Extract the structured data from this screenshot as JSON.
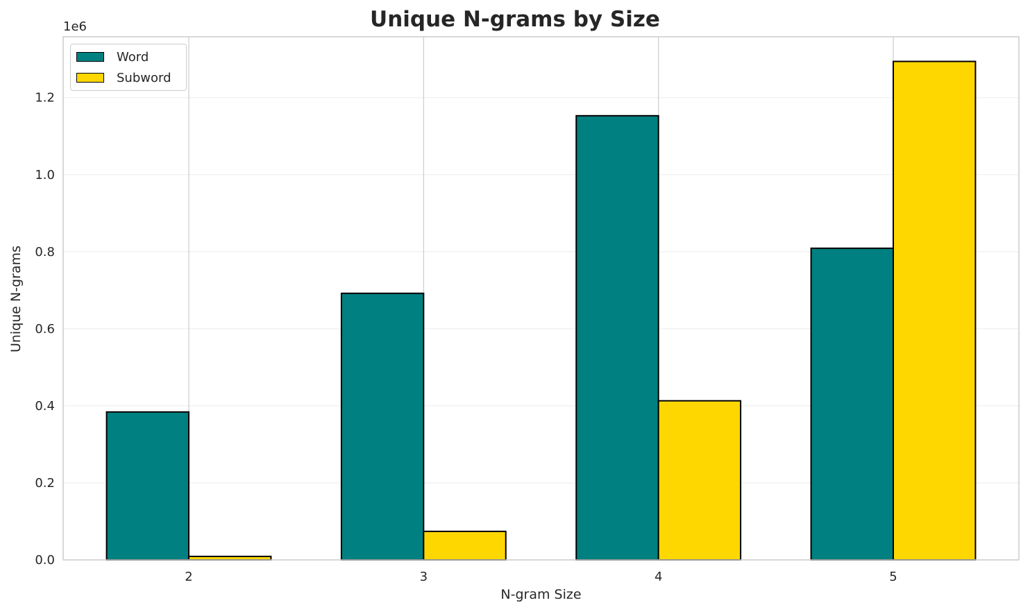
{
  "chart_data": {
    "type": "bar",
    "title": "Unique N-grams by Size",
    "xlabel": "N-gram Size",
    "ylabel": "Unique N-grams",
    "y_offset_label": "1e6",
    "categories": [
      "2",
      "3",
      "4",
      "5"
    ],
    "series": [
      {
        "name": "Word",
        "color": "#008080",
        "values": [
          384000,
          692000,
          1153000,
          809000
        ]
      },
      {
        "name": "Subword",
        "color": "#FFD700",
        "values": [
          9000,
          74000,
          413000,
          1294000
        ]
      }
    ],
    "ylim": [
      0,
      1358000
    ],
    "yticks": [
      0,
      200000,
      400000,
      600000,
      800000,
      1000000,
      1200000
    ],
    "ytick_labels": [
      "0.0",
      "0.2",
      "0.4",
      "0.6",
      "0.8",
      "1.0",
      "1.2"
    ],
    "grid": true,
    "legend_position": "top-left"
  }
}
